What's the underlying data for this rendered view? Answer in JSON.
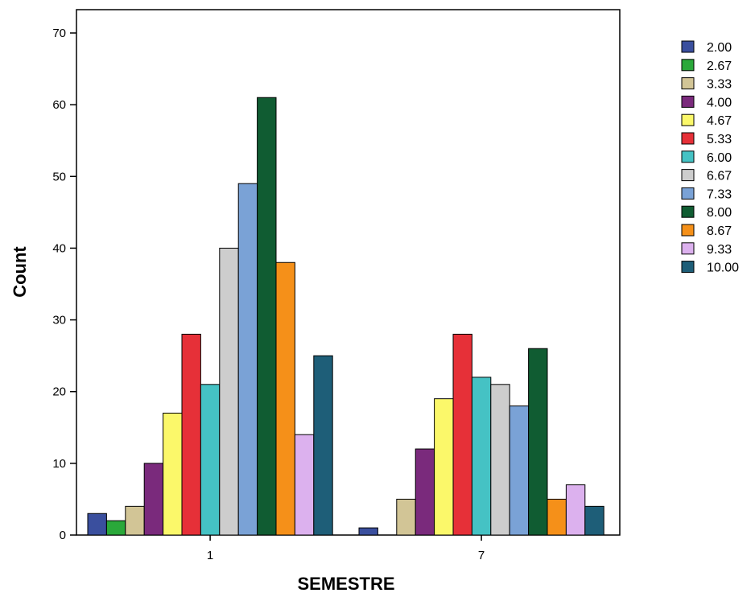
{
  "chart_data": {
    "type": "bar",
    "xlabel": "SEMESTRE",
    "ylabel": "Count",
    "ylim": [
      0,
      70
    ],
    "yticks": [
      0,
      10,
      20,
      30,
      40,
      50,
      60,
      70
    ],
    "categories": [
      "1",
      "7"
    ],
    "legend_position": "right",
    "grid": false,
    "series": [
      {
        "name": "2.00",
        "color": "#3a4f9e",
        "values": [
          3,
          1
        ]
      },
      {
        "name": "2.67",
        "color": "#2aa83a",
        "values": [
          2,
          0
        ]
      },
      {
        "name": "3.33",
        "color": "#d2c596",
        "values": [
          4,
          5
        ]
      },
      {
        "name": "4.00",
        "color": "#7a2a7c",
        "values": [
          10,
          12
        ]
      },
      {
        "name": "4.67",
        "color": "#fbf86a",
        "values": [
          17,
          19
        ]
      },
      {
        "name": "5.33",
        "color": "#e63038",
        "values": [
          28,
          28
        ]
      },
      {
        "name": "6.00",
        "color": "#45c2c4",
        "values": [
          21,
          22
        ]
      },
      {
        "name": "6.67",
        "color": "#cdcdcd",
        "values": [
          40,
          21
        ]
      },
      {
        "name": "7.33",
        "color": "#7aa2d6",
        "values": [
          49,
          18
        ]
      },
      {
        "name": "8.00",
        "color": "#105c32",
        "values": [
          61,
          26
        ]
      },
      {
        "name": "8.67",
        "color": "#f59019",
        "values": [
          38,
          5
        ]
      },
      {
        "name": "9.33",
        "color": "#dcb1ee",
        "values": [
          14,
          7
        ]
      },
      {
        "name": "10.00",
        "color": "#1e5e78",
        "values": [
          25,
          4
        ]
      }
    ]
  }
}
